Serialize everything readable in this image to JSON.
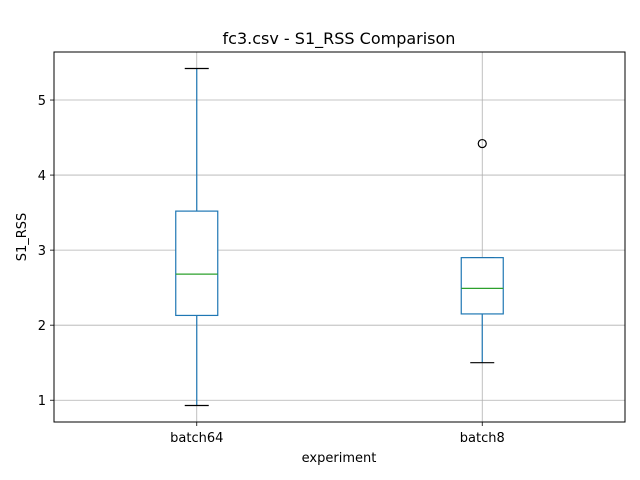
{
  "chart_data": {
    "type": "box",
    "title": "fc3.csv - S1_RSS Comparison",
    "xlabel": "experiment",
    "ylabel": "S1_RSS",
    "categories": [
      "batch64",
      "batch8"
    ],
    "boxes": [
      {
        "name": "batch64",
        "whisker_low": 0.93,
        "q1": 2.13,
        "median": 2.68,
        "q3": 3.52,
        "whisker_high": 5.42,
        "outliers": []
      },
      {
        "name": "batch8",
        "whisker_low": 1.5,
        "q1": 2.15,
        "median": 2.49,
        "q3": 2.9,
        "whisker_high": 2.9,
        "outliers": [
          4.42
        ]
      }
    ],
    "ylim": [
      0.71,
      5.64
    ],
    "yticks": [
      1,
      2,
      3,
      4,
      5
    ],
    "grid": true,
    "colors": {
      "box": "#1f77b4",
      "median": "#2ca02c",
      "grid": "#b0b0b0",
      "outlier": "#000000"
    }
  }
}
